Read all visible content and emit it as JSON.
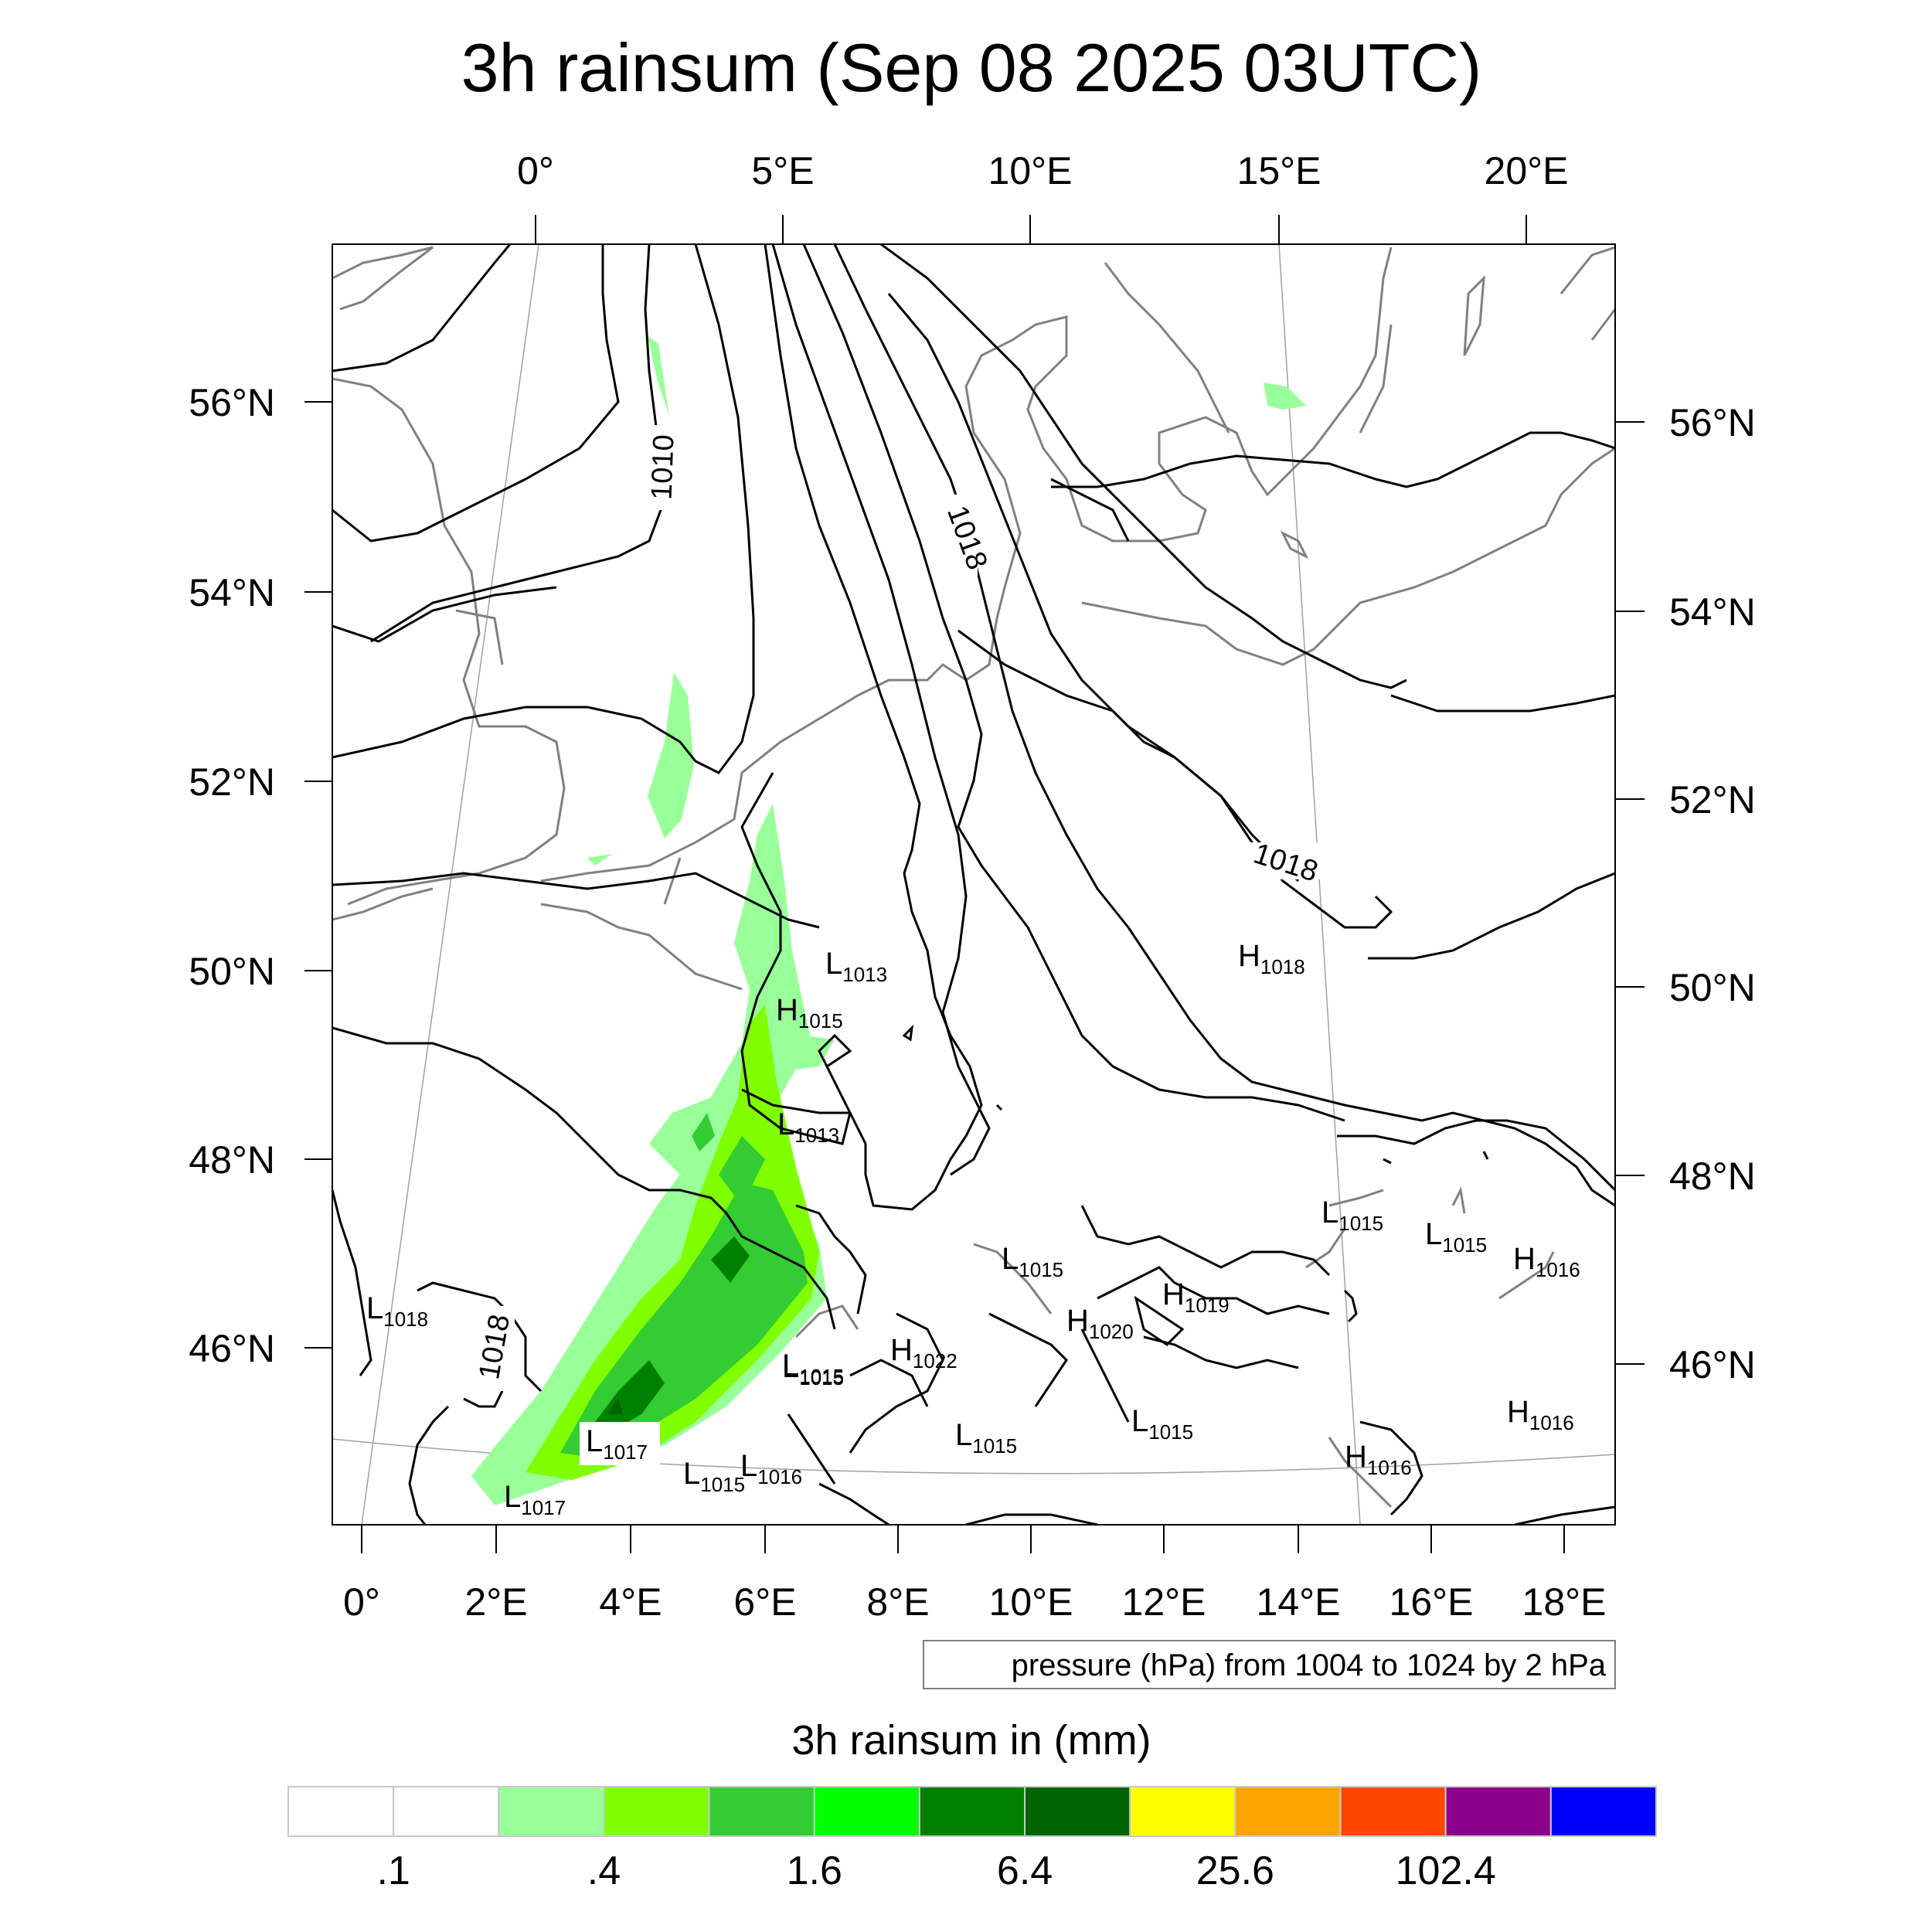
{
  "map": {
    "title": "3h rainsum (Sep 08 2025 03UTC)",
    "top_lon_ticks": [
      "0°",
      "5°E",
      "10°E",
      "15°E",
      "20°E"
    ],
    "bottom_lon_ticks": [
      "0°",
      "2°E",
      "4°E",
      "6°E",
      "8°E",
      "10°E",
      "12°E",
      "14°E",
      "16°E",
      "18°E"
    ],
    "left_lat_ticks": [
      "56°N",
      "54°N",
      "52°N",
      "50°N",
      "48°N",
      "46°N"
    ],
    "right_lat_ticks": [
      "56°N",
      "54°N",
      "52°N",
      "50°N",
      "48°N",
      "46°N"
    ],
    "contour_labels": [
      "1010",
      "1018",
      "1018",
      "1018"
    ],
    "pressure_centers": [
      {
        "letter": "L",
        "value": "1013"
      },
      {
        "letter": "H",
        "value": "1015"
      },
      {
        "letter": "L",
        "value": "1013"
      },
      {
        "letter": "H",
        "value": "1018"
      },
      {
        "letter": "L",
        "value": "1018"
      },
      {
        "letter": "L",
        "value": "1015"
      },
      {
        "letter": "L",
        "value": "1015"
      },
      {
        "letter": "L",
        "value": "1015"
      },
      {
        "letter": "H",
        "value": "1016"
      },
      {
        "letter": "L",
        "value": "1015"
      },
      {
        "letter": "H",
        "value": "1019"
      },
      {
        "letter": "H",
        "value": "1020"
      },
      {
        "letter": "L",
        "value": "1015"
      },
      {
        "letter": "H",
        "value": "1022"
      },
      {
        "letter": "L",
        "value": "1015"
      },
      {
        "letter": "L",
        "value": "1015"
      },
      {
        "letter": "H",
        "value": "1016"
      },
      {
        "letter": "H",
        "value": "1016"
      },
      {
        "letter": "L",
        "value": "1017"
      },
      {
        "letter": "L",
        "value": "1015"
      },
      {
        "letter": "L",
        "value": "1016"
      },
      {
        "letter": "L",
        "value": "1017"
      }
    ],
    "contour_note": "pressure (hPa) from 1004 to 1024 by 2 hPa"
  },
  "colorbar": {
    "title": "3h rainsum in (mm)",
    "colors": [
      "#ffffff",
      "#ffffff",
      "#99ff99",
      "#80ff00",
      "#33cc33",
      "#00ff00",
      "#008000",
      "#006400",
      "#ffff00",
      "#ffa500",
      "#ff4500",
      "#8b008b",
      "#0000ff"
    ],
    "labels": [
      ".1",
      ".4",
      "1.6",
      "6.4",
      "25.6",
      "102.4"
    ]
  },
  "colors": {
    "coastline": "#808080",
    "contour": "#000000",
    "graticule": "#a0a0a0"
  }
}
